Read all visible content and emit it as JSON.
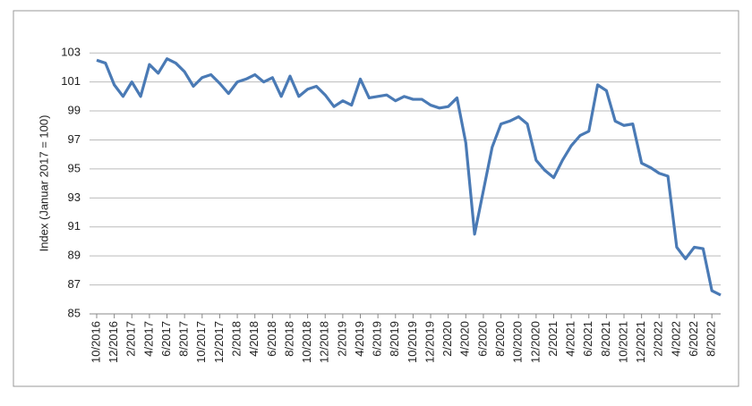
{
  "chart_data": {
    "type": "line",
    "y_label": "Index (Januar 2017 = 100)",
    "categories": [
      "10/2016",
      null,
      "12/2016",
      null,
      "2/2017",
      null,
      "4/2017",
      null,
      "6/2017",
      null,
      "8/2017",
      null,
      "10/2017",
      null,
      "12/2017",
      null,
      "2/2018",
      null,
      "4/2018",
      null,
      "6/2018",
      null,
      "8/2018",
      null,
      "10/2018",
      null,
      "12/2018",
      null,
      "2/2019",
      null,
      "4/2019",
      null,
      "6/2019",
      null,
      "8/2019",
      null,
      "10/2019",
      null,
      "12/2019",
      null,
      "2/2020",
      null,
      "4/2020",
      null,
      "6/2020",
      null,
      "8/2020",
      null,
      "10/2020",
      null,
      "12/2020",
      null,
      "2/2021",
      null,
      "4/2021",
      null,
      "6/2021",
      null,
      "8/2021",
      null,
      "10/2021",
      null,
      "12/2021",
      null,
      "2/2022",
      null,
      "4/2022",
      null,
      "6/2022",
      null,
      "8/2022",
      null
    ],
    "series": [
      {
        "name": "Index",
        "color": "#4a7ab5",
        "values": [
          102.5,
          102.3,
          100.8,
          100.0,
          101.0,
          100.0,
          102.2,
          101.6,
          102.6,
          102.3,
          101.7,
          100.7,
          101.3,
          101.5,
          100.9,
          100.2,
          101.0,
          101.2,
          101.5,
          101.0,
          101.3,
          100.0,
          101.4,
          100.0,
          100.5,
          100.7,
          100.1,
          99.3,
          99.7,
          99.4,
          101.2,
          99.9,
          100.0,
          100.1,
          99.7,
          100.0,
          99.8,
          99.8,
          99.4,
          99.2,
          99.3,
          99.9,
          96.8,
          90.5,
          93.5,
          96.5,
          98.1,
          98.3,
          98.6,
          98.1,
          95.6,
          94.9,
          94.4,
          95.6,
          96.6,
          97.3,
          97.6,
          100.8,
          100.4,
          98.3,
          98.0,
          98.1,
          95.4,
          95.1,
          94.7,
          94.5,
          89.6,
          88.8,
          89.6,
          89.5,
          86.6,
          86.3
        ]
      }
    ],
    "ylim": [
      85,
      104
    ],
    "yticks": [
      85,
      87,
      89,
      91,
      93,
      95,
      97,
      99,
      101,
      103
    ],
    "grid": true
  }
}
